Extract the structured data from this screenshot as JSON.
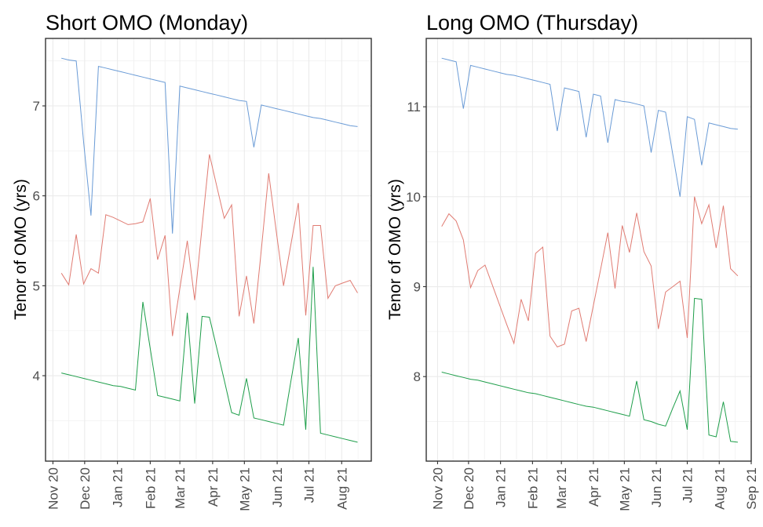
{
  "chart_data": [
    {
      "type": "line",
      "title": "Short OMO (Monday)",
      "xlabel": "",
      "ylabel": "Tenor of OMO (yrs)",
      "xlim": [
        "2020-10-25",
        "2021-08-29"
      ],
      "ylim": [
        3.05,
        7.75
      ],
      "yticks": [
        4,
        5,
        6,
        7
      ],
      "ytick_labels": [
        "4",
        "5",
        "6",
        "7"
      ],
      "xticks": [
        "2020-11-01",
        "2020-12-01",
        "2021-01-01",
        "2021-02-01",
        "2021-03-01",
        "2021-04-01",
        "2021-05-01",
        "2021-06-01",
        "2021-07-01",
        "2021-08-01"
      ],
      "xtick_labels": [
        "Nov 20",
        "Dec 20",
        "Jan 21",
        "Feb 21",
        "Mar 21",
        "Apr 21",
        "May 21",
        "Jun 21",
        "Jul 21",
        "Aug 21"
      ],
      "grid": true,
      "legend": "none",
      "x": [
        "2020-11-09",
        "2020-11-16",
        "2020-11-23",
        "2020-11-30",
        "2020-12-07",
        "2020-12-14",
        "2020-12-21",
        "2020-12-28",
        "2021-01-04",
        "2021-01-11",
        "2021-01-18",
        "2021-01-25",
        "2021-02-01",
        "2021-02-08",
        "2021-02-15",
        "2021-02-22",
        "2021-03-01",
        "2021-03-08",
        "2021-03-15",
        "2021-03-22",
        "2021-03-29",
        "2021-04-05",
        "2021-04-12",
        "2021-04-19",
        "2021-04-26",
        "2021-05-03",
        "2021-05-10",
        "2021-05-17",
        "2021-05-24",
        "2021-05-31",
        "2021-06-07",
        "2021-06-14",
        "2021-06-21",
        "2021-06-28",
        "2021-07-05",
        "2021-07-12",
        "2021-07-19",
        "2021-07-26",
        "2021-08-02",
        "2021-08-09",
        "2021-08-16"
      ],
      "series": [
        {
          "name": "red",
          "color": "#E07B72",
          "values": [
            5.14,
            5.01,
            5.57,
            5.02,
            5.19,
            5.14,
            5.79,
            5.76,
            5.72,
            5.68,
            5.69,
            5.71,
            5.97,
            5.29,
            5.56,
            4.44,
            4.97,
            5.5,
            4.84,
            5.65,
            6.46,
            6.1,
            5.75,
            5.9,
            4.66,
            5.11,
            4.58,
            5.4,
            6.25,
            5.62,
            5.0,
            5.46,
            5.92,
            4.67,
            5.67,
            5.67,
            4.86,
            5.0,
            5.03,
            5.06,
            4.92
          ]
        },
        {
          "name": "green",
          "color": "#1E9E4A",
          "values": [
            4.03,
            4.01,
            3.99,
            3.97,
            3.95,
            3.93,
            3.91,
            3.89,
            3.88,
            3.86,
            3.84,
            4.82,
            4.3,
            3.78,
            3.76,
            3.74,
            3.72,
            4.7,
            3.69,
            4.66,
            4.65,
            4.3,
            3.95,
            3.59,
            3.56,
            3.97,
            3.53,
            3.51,
            3.49,
            3.47,
            3.45,
            3.94,
            4.42,
            3.4,
            5.21,
            3.36,
            3.34,
            3.32,
            3.3,
            3.28,
            3.26
          ]
        },
        {
          "name": "blue",
          "color": "#6A9BD6",
          "values": [
            7.53,
            7.51,
            7.5,
            6.6,
            5.78,
            7.44,
            7.42,
            7.4,
            7.38,
            7.36,
            7.34,
            7.32,
            7.3,
            7.28,
            7.26,
            5.58,
            7.22,
            7.2,
            7.18,
            7.16,
            7.14,
            7.12,
            7.1,
            7.08,
            7.06,
            7.05,
            6.54,
            7.01,
            6.99,
            6.97,
            6.95,
            6.93,
            6.91,
            6.89,
            6.87,
            6.86,
            6.84,
            6.82,
            6.8,
            6.78,
            6.77
          ]
        }
      ]
    },
    {
      "type": "line",
      "title": "Long OMO (Thursday)",
      "xlabel": "",
      "ylabel": "Tenor of OMO (yrs)",
      "xlim": [
        "2020-10-21",
        "2021-09-01"
      ],
      "ylim": [
        7.06,
        11.76
      ],
      "yticks": [
        8,
        9,
        10,
        11
      ],
      "ytick_labels": [
        "8",
        "9",
        "10",
        "11"
      ],
      "xticks": [
        "2020-11-01",
        "2020-12-01",
        "2021-01-01",
        "2021-02-01",
        "2021-03-01",
        "2021-04-01",
        "2021-05-01",
        "2021-06-01",
        "2021-07-01",
        "2021-08-01",
        "2021-09-01"
      ],
      "xtick_labels": [
        "Nov 20",
        "Dec 20",
        "Jan 21",
        "Feb 21",
        "Mar 21",
        "Apr 21",
        "May 21",
        "Jun 21",
        "Jul 21",
        "Aug 21",
        "Sep 21"
      ],
      "grid": true,
      "legend": "none",
      "x": [
        "2020-11-05",
        "2020-11-12",
        "2020-11-19",
        "2020-11-26",
        "2020-12-03",
        "2020-12-10",
        "2020-12-17",
        "2020-12-24",
        "2020-12-31",
        "2021-01-07",
        "2021-01-14",
        "2021-01-21",
        "2021-01-28",
        "2021-02-04",
        "2021-02-11",
        "2021-02-18",
        "2021-02-25",
        "2021-03-04",
        "2021-03-11",
        "2021-03-18",
        "2021-03-25",
        "2021-04-01",
        "2021-04-08",
        "2021-04-15",
        "2021-04-22",
        "2021-04-29",
        "2021-05-06",
        "2021-05-13",
        "2021-05-20",
        "2021-05-27",
        "2021-06-03",
        "2021-06-10",
        "2021-06-17",
        "2021-06-24",
        "2021-07-01",
        "2021-07-08",
        "2021-07-15",
        "2021-07-22",
        "2021-07-29",
        "2021-08-05",
        "2021-08-12",
        "2021-08-19"
      ],
      "series": [
        {
          "name": "red",
          "color": "#E07B72",
          "values": [
            9.67,
            9.81,
            9.73,
            9.52,
            8.99,
            9.18,
            9.24,
            9.02,
            8.8,
            8.58,
            8.37,
            8.86,
            8.62,
            9.37,
            9.44,
            8.45,
            8.33,
            8.36,
            8.73,
            8.76,
            8.39,
            8.79,
            9.19,
            9.6,
            8.98,
            9.68,
            9.38,
            9.82,
            9.39,
            9.23,
            8.53,
            8.94,
            9.0,
            9.06,
            8.43,
            10.0,
            9.7,
            9.91,
            9.43,
            9.9,
            9.2,
            9.12
          ]
        },
        {
          "name": "green",
          "color": "#1E9E4A",
          "values": [
            8.05,
            8.03,
            8.01,
            7.99,
            7.97,
            7.96,
            7.94,
            7.92,
            7.9,
            7.88,
            7.86,
            7.84,
            7.82,
            7.81,
            7.79,
            7.77,
            7.75,
            7.73,
            7.71,
            7.69,
            7.67,
            7.66,
            7.64,
            7.62,
            7.6,
            7.58,
            7.56,
            7.95,
            7.52,
            7.5,
            7.47,
            7.45,
            7.65,
            7.84,
            7.41,
            8.87,
            8.86,
            7.35,
            7.33,
            7.72,
            7.28,
            7.27
          ]
        },
        {
          "name": "blue",
          "color": "#6A9BD6",
          "values": [
            11.54,
            11.52,
            11.5,
            10.98,
            11.46,
            11.44,
            11.42,
            11.4,
            11.38,
            11.36,
            11.35,
            11.33,
            11.31,
            11.29,
            11.27,
            11.25,
            10.73,
            11.21,
            11.19,
            11.17,
            10.66,
            11.14,
            11.12,
            10.6,
            11.08,
            11.06,
            11.05,
            11.03,
            11.01,
            10.49,
            10.96,
            10.94,
            10.47,
            10.0,
            10.89,
            10.86,
            10.35,
            10.82,
            10.8,
            10.78,
            10.76,
            10.75
          ]
        }
      ]
    }
  ]
}
